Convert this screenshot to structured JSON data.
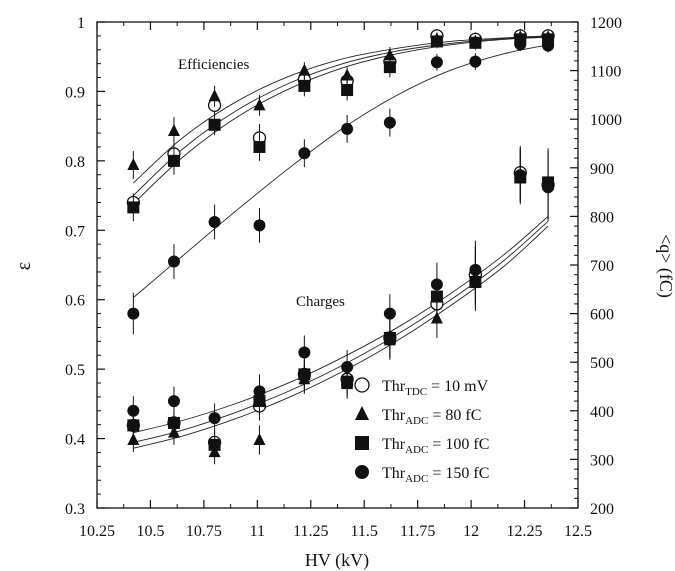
{
  "chart_data": {
    "type": "scatter",
    "xlabel": "HV (kV)",
    "ylabel_left": "ε",
    "ylabel_right": "<q> (fC)",
    "xlim": [
      10.25,
      12.5
    ],
    "ylim_left": [
      0.3,
      1.0
    ],
    "ylim_right": [
      200,
      1200
    ],
    "x_ticks": [
      "10.25",
      "10.5",
      "10.75",
      "11",
      "11.25",
      "11.5",
      "11.75",
      "12",
      "12.25",
      "12.5"
    ],
    "y_left_ticks": [
      "0.3",
      "0.4",
      "0.5",
      "0.6",
      "0.7",
      "0.8",
      "0.9",
      "1"
    ],
    "y_right_ticks": [
      "200",
      "300",
      "400",
      "500",
      "600",
      "700",
      "800",
      "900",
      "1000",
      "1100",
      "1200"
    ],
    "annotations": {
      "efficiencies": "Efficiencies",
      "charges": "Charges"
    },
    "grid": false,
    "legend_position": "lower-right",
    "legend": [
      {
        "marker": "open-circle",
        "main": "Thr",
        "sub": "TDC",
        "rest": " = 10 mV"
      },
      {
        "marker": "triangle",
        "main": "Thr",
        "sub": "ADC",
        "rest": " = 80 fC"
      },
      {
        "marker": "square",
        "main": "Thr",
        "sub": "ADC",
        "rest": " = 100 fC"
      },
      {
        "marker": "filled-circle",
        "main": "Thr",
        "sub": "ADC",
        "rest": " = 150 fC"
      }
    ],
    "efficiency_series": [
      {
        "marker": "open-circle",
        "axis": "left",
        "x": [
          10.42,
          10.61,
          10.8,
          11.01,
          11.22,
          11.42,
          11.62,
          11.84,
          12.02,
          12.23,
          12.36
        ],
        "y": [
          0.74,
          0.81,
          0.88,
          0.833,
          0.917,
          0.915,
          0.943,
          0.98,
          0.975,
          0.98,
          0.98
        ],
        "err": [
          0.01,
          0.015,
          0.015,
          0.02,
          0.015,
          0.015,
          0.015,
          0.01,
          0.01,
          0.01,
          0.01
        ]
      },
      {
        "marker": "triangle",
        "axis": "left",
        "x": [
          10.42,
          10.61,
          10.8,
          11.01,
          11.22,
          11.42,
          11.62,
          11.84,
          12.02,
          12.23,
          12.36
        ],
        "y": [
          0.794,
          0.843,
          0.893,
          0.88,
          0.93,
          0.923,
          0.952,
          0.975,
          0.972,
          0.978,
          0.978
        ],
        "err": [
          0.02,
          0.02,
          0.015,
          0.015,
          0.012,
          0.012,
          0.012,
          0.01,
          0.008,
          0.008,
          0.008
        ]
      },
      {
        "marker": "square",
        "axis": "left",
        "x": [
          10.42,
          10.61,
          10.8,
          11.01,
          11.22,
          11.42,
          11.62,
          11.84,
          12.02,
          12.23,
          12.36
        ],
        "y": [
          0.733,
          0.8,
          0.852,
          0.82,
          0.908,
          0.902,
          0.935,
          0.972,
          0.97,
          0.975,
          0.975
        ],
        "err": [
          0.02,
          0.02,
          0.015,
          0.02,
          0.015,
          0.015,
          0.015,
          0.01,
          0.01,
          0.01,
          0.01
        ]
      },
      {
        "marker": "filled-circle",
        "axis": "left",
        "x": [
          10.42,
          10.61,
          10.8,
          11.01,
          11.22,
          11.42,
          11.62,
          11.84,
          12.02,
          12.23,
          12.36
        ],
        "y": [
          0.58,
          0.655,
          0.712,
          0.707,
          0.811,
          0.846,
          0.855,
          0.942,
          0.943,
          0.968,
          0.966
        ],
        "err": [
          0.03,
          0.025,
          0.025,
          0.025,
          0.02,
          0.02,
          0.02,
          0.012,
          0.012,
          0.01,
          0.01
        ]
      }
    ],
    "efficiency_fits": {
      "left_axis": true,
      "x": [
        10.42,
        10.65,
        10.9,
        11.15,
        11.4,
        11.65,
        11.9,
        12.15,
        12.36
      ],
      "curves": [
        [
          0.768,
          0.833,
          0.885,
          0.922,
          0.947,
          0.962,
          0.972,
          0.977,
          0.98
        ],
        [
          0.75,
          0.817,
          0.872,
          0.912,
          0.94,
          0.958,
          0.969,
          0.976,
          0.979
        ],
        [
          0.738,
          0.805,
          0.862,
          0.904,
          0.934,
          0.954,
          0.967,
          0.975,
          0.978
        ],
        [
          0.603,
          0.663,
          0.728,
          0.79,
          0.847,
          0.894,
          0.93,
          0.954,
          0.967
        ]
      ]
    },
    "charge_series": [
      {
        "marker": "open-circle",
        "axis": "right",
        "x": [
          10.42,
          10.61,
          10.8,
          11.01,
          11.22,
          11.42,
          11.62,
          11.84,
          12.02,
          12.23,
          12.36
        ],
        "y": [
          370,
          375,
          335,
          410,
          475,
          465,
          550,
          620,
          680,
          890,
          865
        ],
        "err": [
          25,
          25,
          25,
          30,
          30,
          30,
          40,
          40,
          60,
          55,
          70
        ]
      },
      {
        "marker": "triangle",
        "axis": "right",
        "x": [
          10.42,
          10.61,
          10.8,
          11.01,
          11.22,
          11.42,
          11.62,
          11.84,
          12.02,
          12.23,
          12.36
        ],
        "y": [
          340,
          355,
          315,
          340,
          465,
          455,
          545,
          590,
          675,
          885,
          865
        ],
        "err": [
          25,
          25,
          25,
          30,
          30,
          30,
          40,
          40,
          60,
          55,
          70
        ]
      },
      {
        "marker": "square",
        "axis": "right",
        "x": [
          10.42,
          10.61,
          10.8,
          11.01,
          11.22,
          11.42,
          11.62,
          11.84,
          12.02,
          12.23,
          12.36
        ],
        "y": [
          370,
          375,
          330,
          420,
          475,
          460,
          550,
          635,
          665,
          880,
          870
        ],
        "err": [
          25,
          25,
          25,
          30,
          30,
          30,
          40,
          40,
          60,
          55,
          70
        ]
      },
      {
        "marker": "filled-circle",
        "axis": "right",
        "x": [
          10.42,
          10.61,
          10.8,
          11.01,
          11.22,
          11.42,
          11.62,
          11.84,
          12.02,
          12.23,
          12.36
        ],
        "y": [
          400,
          420,
          385,
          440,
          520,
          490,
          600,
          660,
          690,
          885,
          860
        ],
        "err": [
          30,
          30,
          30,
          35,
          35,
          35,
          40,
          45,
          60,
          55,
          70
        ]
      }
    ],
    "charge_fits": {
      "right_axis": true,
      "x": [
        10.42,
        10.65,
        10.9,
        11.15,
        11.4,
        11.65,
        11.9,
        12.15,
        12.36
      ],
      "curves": [
        [
          355,
          380,
          415,
          458,
          510,
          570,
          640,
          720,
          800
        ],
        [
          335,
          360,
          397,
          441,
          494,
          556,
          627,
          708,
          790
        ],
        [
          323,
          348,
          384,
          428,
          481,
          543,
          615,
          696,
          780
        ]
      ]
    }
  }
}
